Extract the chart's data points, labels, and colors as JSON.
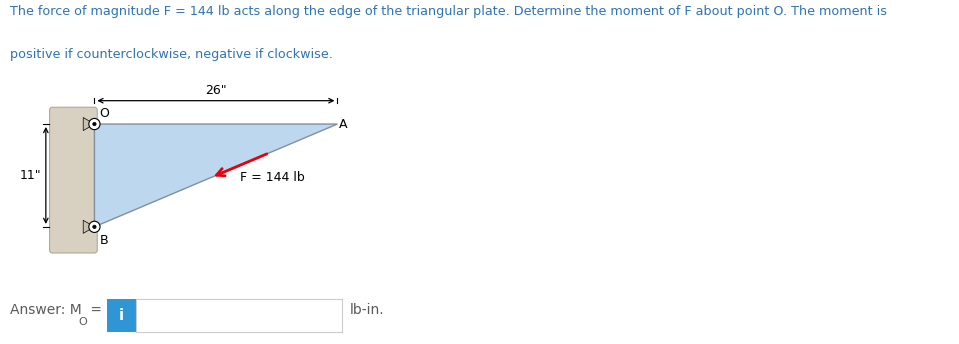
{
  "title_line1": "The force of magnitude F = 144 lb acts along the edge of the triangular plate. Determine the moment of F about point O. The moment is",
  "title_line2": "positive if counterclockwise, negative if clockwise.",
  "title_color": "#2E74B5",
  "bg_color": "#ffffff",
  "triangle_fill": "#BDD7EE",
  "triangle_edge_color": "#8090A0",
  "wall_color": "#D8D0C0",
  "wall_edge_color": "#B0A898",
  "dim_26_text": "26\"",
  "dim_11_text": "11\"",
  "force_label": "F = 144 lb",
  "point_O_label": "O",
  "point_A_label": "A",
  "point_B_label": "B",
  "O": [
    0.0,
    11.0
  ],
  "A": [
    26.0,
    11.0
  ],
  "B": [
    0.0,
    0.0
  ],
  "force_color": "#E8000C",
  "arrow_color": "#000000",
  "answer_text_color": "#5A5A5A",
  "answer_btn_color": "#2E96D4",
  "box_border_color": "#CCCCCC"
}
